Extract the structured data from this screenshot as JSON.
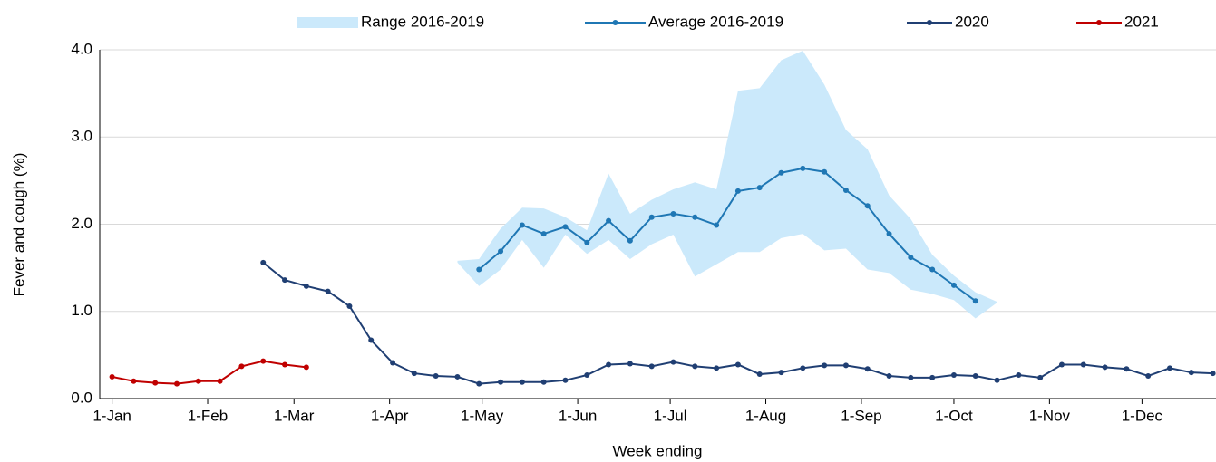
{
  "chart_data": {
    "type": "line",
    "y_label": "Fever and cough (%)",
    "x_label": "Week ending",
    "xlim": [
      -3,
      359
    ],
    "xticks": [
      {
        "value": 1,
        "label": "1-Jan"
      },
      {
        "value": 32,
        "label": "1-Feb"
      },
      {
        "value": 60,
        "label": "1-Mar"
      },
      {
        "value": 91,
        "label": "1-Apr"
      },
      {
        "value": 121,
        "label": "1-May"
      },
      {
        "value": 152,
        "label": "1-Jun"
      },
      {
        "value": 182,
        "label": "1-Jul"
      },
      {
        "value": 213,
        "label": "1-Aug"
      },
      {
        "value": 244,
        "label": "1-Sep"
      },
      {
        "value": 274,
        "label": "1-Oct"
      },
      {
        "value": 305,
        "label": "1-Nov"
      },
      {
        "value": 335,
        "label": "1-Dec"
      }
    ],
    "ylim": [
      0,
      4
    ],
    "yticks": [
      {
        "value": 0,
        "label": "0.0"
      },
      {
        "value": 1,
        "label": "1.0"
      },
      {
        "value": 2,
        "label": "2.0"
      },
      {
        "value": 3,
        "label": "3.0"
      },
      {
        "value": 4,
        "label": "4.0"
      }
    ],
    "grid": true,
    "series": [
      {
        "name": "Range 2016-2019",
        "type": "band",
        "color": "#cbe9fb",
        "x": [
          113,
          120,
          127,
          134,
          141,
          148,
          155,
          162,
          169,
          176,
          183,
          190,
          197,
          204,
          211,
          218,
          225,
          232,
          239,
          246,
          253,
          260,
          267,
          274,
          281,
          288
        ],
        "upper": [
          1.58,
          1.6,
          1.95,
          2.19,
          2.18,
          2.08,
          1.93,
          2.58,
          2.12,
          2.28,
          2.4,
          2.48,
          2.4,
          3.53,
          3.56,
          3.88,
          3.99,
          3.6,
          3.08,
          2.86,
          2.33,
          2.06,
          1.65,
          1.41,
          1.22,
          1.11
        ],
        "lower": [
          1.56,
          1.29,
          1.48,
          1.82,
          1.5,
          1.88,
          1.66,
          1.82,
          1.6,
          1.77,
          1.88,
          1.4,
          1.54,
          1.68,
          1.68,
          1.84,
          1.89,
          1.7,
          1.72,
          1.48,
          1.44,
          1.25,
          1.2,
          1.13,
          0.92,
          1.1
        ]
      },
      {
        "name": "Average 2016-2019",
        "type": "line",
        "color": "#1f77b4",
        "x": [
          120,
          127,
          134,
          141,
          148,
          155,
          162,
          169,
          176,
          183,
          190,
          197,
          204,
          211,
          218,
          225,
          232,
          239,
          246,
          253,
          260,
          267,
          274,
          281
        ],
        "values": [
          1.48,
          1.69,
          1.99,
          1.89,
          1.97,
          1.79,
          2.04,
          1.81,
          2.08,
          2.12,
          2.08,
          1.99,
          2.38,
          2.42,
          2.59,
          2.64,
          2.6,
          2.39,
          2.21,
          1.89,
          1.62,
          1.48,
          1.3,
          1.12
        ]
      },
      {
        "name": "2020",
        "type": "line",
        "color": "#203f73",
        "x": [
          50,
          57,
          64,
          71,
          78,
          85,
          92,
          99,
          106,
          113,
          120,
          127,
          134,
          141,
          148,
          155,
          162,
          169,
          176,
          183,
          190,
          197,
          204,
          211,
          218,
          225,
          232,
          239,
          246,
          253,
          260,
          267,
          274,
          281,
          288,
          295,
          302,
          309,
          316,
          323,
          330,
          337,
          344,
          351,
          358
        ],
        "values": [
          1.56,
          1.36,
          1.29,
          1.23,
          1.06,
          0.67,
          0.41,
          0.29,
          0.26,
          0.25,
          0.17,
          0.19,
          0.19,
          0.19,
          0.21,
          0.27,
          0.39,
          0.4,
          0.37,
          0.42,
          0.37,
          0.35,
          0.39,
          0.28,
          0.3,
          0.35,
          0.38,
          0.38,
          0.34,
          0.26,
          0.24,
          0.24,
          0.27,
          0.26,
          0.21,
          0.27,
          0.24,
          0.39,
          0.39,
          0.36,
          0.34,
          0.26,
          0.35,
          0.3,
          0.29
        ]
      },
      {
        "name": "2021",
        "type": "line",
        "color": "#c00000",
        "x": [
          1,
          8,
          15,
          22,
          29,
          36,
          43,
          50,
          57,
          64
        ],
        "values": [
          0.25,
          0.2,
          0.18,
          0.17,
          0.2,
          0.2,
          0.37,
          0.43,
          0.39,
          0.36
        ]
      }
    ]
  }
}
